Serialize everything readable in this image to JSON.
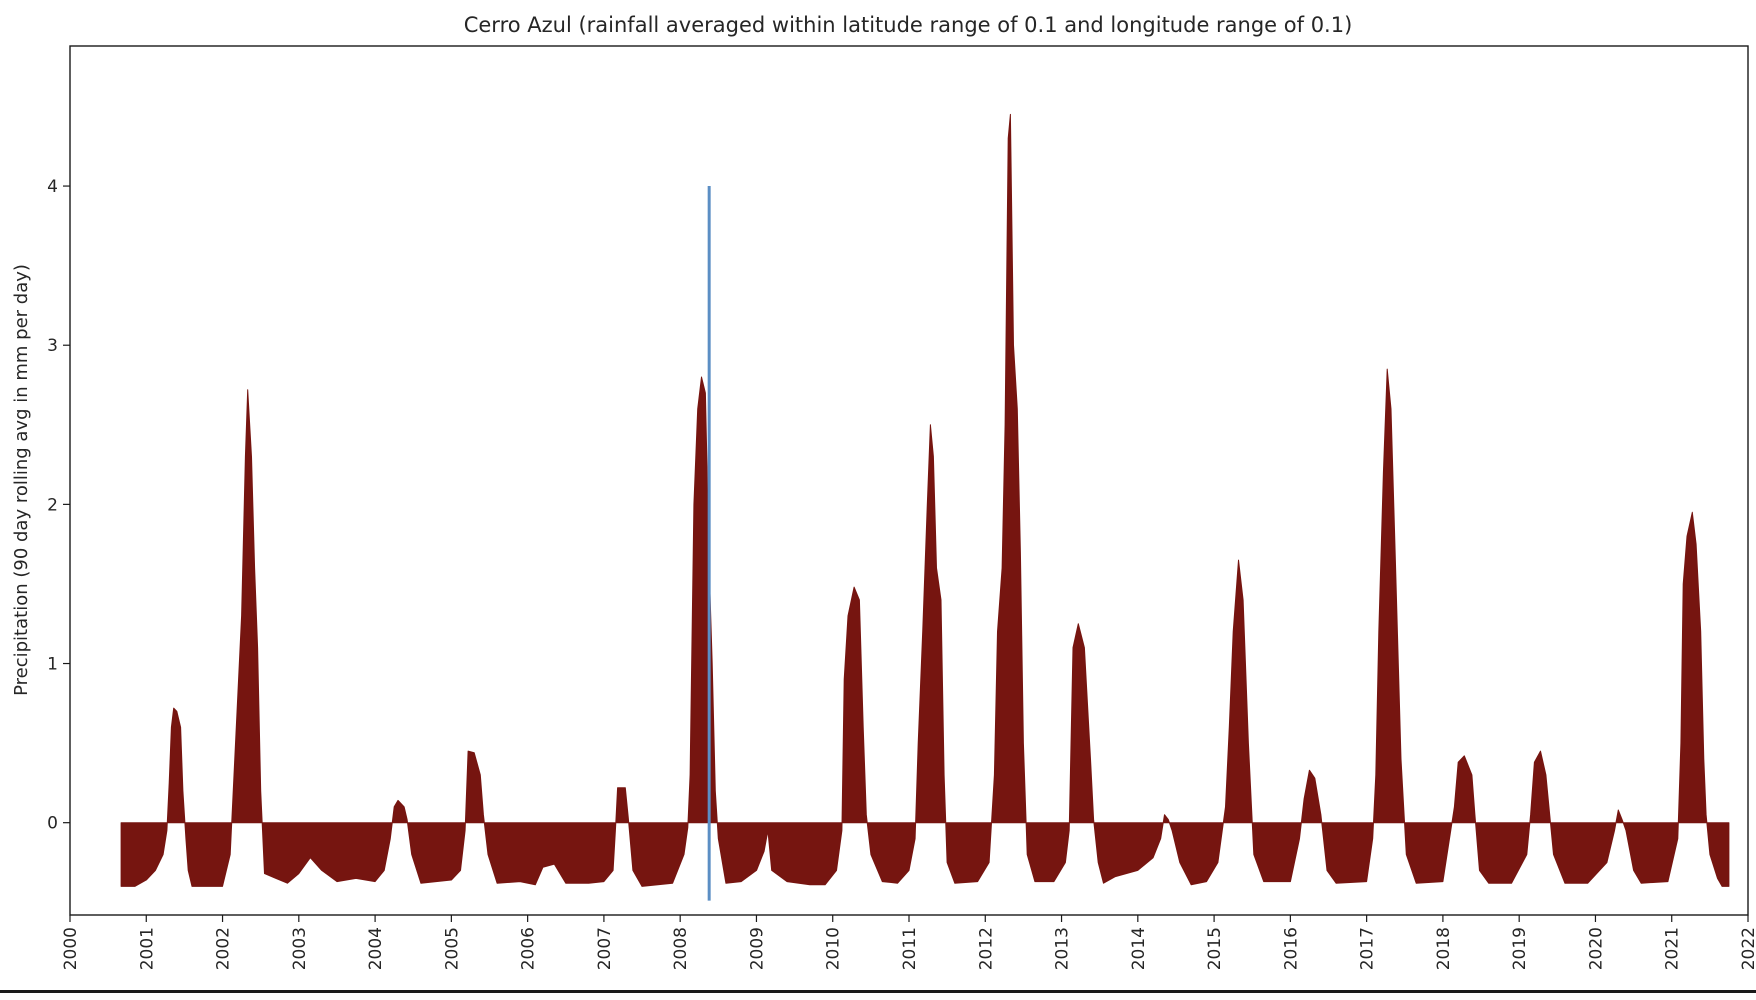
{
  "chart_data": {
    "type": "area",
    "title": "Cerro Azul (rainfall averaged within latitude range of 0.1 and longitude range of 0.1)",
    "xlabel": "",
    "ylabel": "Precipitation (90 day rolling avg in mm per day)",
    "xlim": [
      2000.0,
      2022.0
    ],
    "ylim": [
      -0.58,
      4.88
    ],
    "x_ticks": [
      "2000",
      "2001",
      "2002",
      "2003",
      "2004",
      "2005",
      "2006",
      "2007",
      "2008",
      "2009",
      "2010",
      "2011",
      "2012",
      "2013",
      "2014",
      "2015",
      "2016",
      "2017",
      "2018",
      "2019",
      "2020",
      "2021",
      "2022"
    ],
    "y_ticks": [
      0,
      1,
      2,
      3,
      4
    ],
    "fill_color": "#761510",
    "grid": false,
    "baseline": 0,
    "series": [
      {
        "points": [
          [
            2000.67,
            -0.4
          ],
          [
            2000.85,
            -0.4
          ],
          [
            2001.0,
            -0.36
          ],
          [
            2001.12,
            -0.3
          ],
          [
            2001.22,
            -0.2
          ],
          [
            2001.27,
            -0.05
          ],
          [
            2001.3,
            0.25
          ],
          [
            2001.33,
            0.6
          ],
          [
            2001.36,
            0.72
          ],
          [
            2001.4,
            0.7
          ],
          [
            2001.45,
            0.6
          ],
          [
            2001.48,
            0.2
          ],
          [
            2001.52,
            -0.1
          ],
          [
            2001.55,
            -0.3
          ],
          [
            2001.6,
            -0.4
          ],
          [
            2002.0,
            -0.4
          ],
          [
            2002.1,
            -0.2
          ],
          [
            2002.15,
            0.3
          ],
          [
            2002.2,
            0.8
          ],
          [
            2002.25,
            1.3
          ],
          [
            2002.3,
            2.3
          ],
          [
            2002.33,
            2.72
          ],
          [
            2002.38,
            2.3
          ],
          [
            2002.42,
            1.6
          ],
          [
            2002.46,
            1.1
          ],
          [
            2002.5,
            0.2
          ],
          [
            2002.55,
            -0.32
          ],
          [
            2002.7,
            -0.35
          ],
          [
            2002.85,
            -0.38
          ],
          [
            2003.0,
            -0.32
          ],
          [
            2003.15,
            -0.22
          ],
          [
            2003.3,
            -0.3
          ],
          [
            2003.5,
            -0.37
          ],
          [
            2003.75,
            -0.35
          ],
          [
            2004.0,
            -0.37
          ],
          [
            2004.12,
            -0.3
          ],
          [
            2004.2,
            -0.1
          ],
          [
            2004.25,
            0.1
          ],
          [
            2004.3,
            0.14
          ],
          [
            2004.38,
            0.1
          ],
          [
            2004.42,
            0.02
          ],
          [
            2004.48,
            -0.2
          ],
          [
            2004.6,
            -0.38
          ],
          [
            2004.8,
            -0.37
          ],
          [
            2005.0,
            -0.36
          ],
          [
            2005.12,
            -0.3
          ],
          [
            2005.18,
            -0.05
          ],
          [
            2005.22,
            0.45
          ],
          [
            2005.3,
            0.44
          ],
          [
            2005.38,
            0.3
          ],
          [
            2005.42,
            0.05
          ],
          [
            2005.48,
            -0.2
          ],
          [
            2005.6,
            -0.38
          ],
          [
            2005.9,
            -0.37
          ],
          [
            2006.1,
            -0.39
          ],
          [
            2006.2,
            -0.28
          ],
          [
            2006.35,
            -0.26
          ],
          [
            2006.5,
            -0.38
          ],
          [
            2006.8,
            -0.38
          ],
          [
            2007.0,
            -0.37
          ],
          [
            2007.12,
            -0.3
          ],
          [
            2007.15,
            -0.05
          ],
          [
            2007.18,
            0.22
          ],
          [
            2007.28,
            0.22
          ],
          [
            2007.32,
            0.03
          ],
          [
            2007.38,
            -0.3
          ],
          [
            2007.5,
            -0.4
          ],
          [
            2007.9,
            -0.38
          ],
          [
            2008.05,
            -0.2
          ],
          [
            2008.1,
            -0.03
          ],
          [
            2008.13,
            0.3
          ],
          [
            2008.18,
            2.0
          ],
          [
            2008.23,
            2.6
          ],
          [
            2008.28,
            2.8
          ],
          [
            2008.33,
            2.7
          ],
          [
            2008.38,
            1.6
          ],
          [
            2008.42,
            1.0
          ],
          [
            2008.46,
            0.2
          ],
          [
            2008.5,
            -0.1
          ],
          [
            2008.6,
            -0.38
          ],
          [
            2008.8,
            -0.37
          ],
          [
            2009.0,
            -0.3
          ],
          [
            2009.1,
            -0.18
          ],
          [
            2009.15,
            -0.05
          ],
          [
            2009.2,
            -0.3
          ],
          [
            2009.4,
            -0.37
          ],
          [
            2009.7,
            -0.39
          ],
          [
            2009.9,
            -0.39
          ],
          [
            2010.05,
            -0.3
          ],
          [
            2010.12,
            -0.05
          ],
          [
            2010.15,
            0.9
          ],
          [
            2010.2,
            1.3
          ],
          [
            2010.28,
            1.48
          ],
          [
            2010.35,
            1.4
          ],
          [
            2010.4,
            0.6
          ],
          [
            2010.44,
            0.05
          ],
          [
            2010.5,
            -0.2
          ],
          [
            2010.65,
            -0.37
          ],
          [
            2010.85,
            -0.38
          ],
          [
            2011.0,
            -0.3
          ],
          [
            2011.08,
            -0.1
          ],
          [
            2011.12,
            0.5
          ],
          [
            2011.18,
            1.2
          ],
          [
            2011.24,
            2.0
          ],
          [
            2011.28,
            2.5
          ],
          [
            2011.32,
            2.3
          ],
          [
            2011.36,
            1.6
          ],
          [
            2011.42,
            1.4
          ],
          [
            2011.46,
            0.3
          ],
          [
            2011.5,
            -0.25
          ],
          [
            2011.6,
            -0.38
          ],
          [
            2011.9,
            -0.37
          ],
          [
            2012.05,
            -0.25
          ],
          [
            2012.12,
            0.3
          ],
          [
            2012.16,
            1.2
          ],
          [
            2012.22,
            1.6
          ],
          [
            2012.26,
            2.5
          ],
          [
            2012.3,
            4.3
          ],
          [
            2012.33,
            4.45
          ],
          [
            2012.37,
            3.0
          ],
          [
            2012.42,
            2.6
          ],
          [
            2012.46,
            1.7
          ],
          [
            2012.5,
            0.5
          ],
          [
            2012.55,
            -0.2
          ],
          [
            2012.65,
            -0.37
          ],
          [
            2012.9,
            -0.37
          ],
          [
            2013.05,
            -0.25
          ],
          [
            2013.1,
            -0.05
          ],
          [
            2013.12,
            0.4
          ],
          [
            2013.15,
            1.1
          ],
          [
            2013.22,
            1.25
          ],
          [
            2013.3,
            1.1
          ],
          [
            2013.38,
            0.4
          ],
          [
            2013.42,
            0.02
          ],
          [
            2013.48,
            -0.25
          ],
          [
            2013.55,
            -0.38
          ],
          [
            2013.7,
            -0.34
          ],
          [
            2014.0,
            -0.3
          ],
          [
            2014.2,
            -0.22
          ],
          [
            2014.3,
            -0.1
          ],
          [
            2014.35,
            0.05
          ],
          [
            2014.4,
            0.02
          ],
          [
            2014.45,
            -0.05
          ],
          [
            2014.55,
            -0.25
          ],
          [
            2014.7,
            -0.39
          ],
          [
            2014.9,
            -0.37
          ],
          [
            2015.05,
            -0.25
          ],
          [
            2015.15,
            0.1
          ],
          [
            2015.2,
            0.6
          ],
          [
            2015.25,
            1.2
          ],
          [
            2015.32,
            1.65
          ],
          [
            2015.38,
            1.4
          ],
          [
            2015.45,
            0.5
          ],
          [
            2015.52,
            -0.2
          ],
          [
            2015.65,
            -0.37
          ],
          [
            2016.0,
            -0.37
          ],
          [
            2016.12,
            -0.1
          ],
          [
            2016.18,
            0.15
          ],
          [
            2016.25,
            0.33
          ],
          [
            2016.32,
            0.28
          ],
          [
            2016.4,
            0.05
          ],
          [
            2016.48,
            -0.3
          ],
          [
            2016.6,
            -0.38
          ],
          [
            2017.0,
            -0.37
          ],
          [
            2017.08,
            -0.1
          ],
          [
            2017.12,
            0.3
          ],
          [
            2017.16,
            1.2
          ],
          [
            2017.22,
            2.2
          ],
          [
            2017.27,
            2.85
          ],
          [
            2017.32,
            2.6
          ],
          [
            2017.38,
            1.6
          ],
          [
            2017.45,
            0.4
          ],
          [
            2017.52,
            -0.2
          ],
          [
            2017.65,
            -0.38
          ],
          [
            2018.0,
            -0.37
          ],
          [
            2018.15,
            0.1
          ],
          [
            2018.2,
            0.38
          ],
          [
            2018.28,
            0.42
          ],
          [
            2018.38,
            0.3
          ],
          [
            2018.42,
            0.05
          ],
          [
            2018.48,
            -0.3
          ],
          [
            2018.6,
            -0.38
          ],
          [
            2018.9,
            -0.38
          ],
          [
            2019.1,
            -0.2
          ],
          [
            2019.15,
            0.05
          ],
          [
            2019.2,
            0.38
          ],
          [
            2019.28,
            0.45
          ],
          [
            2019.35,
            0.3
          ],
          [
            2019.4,
            0.05
          ],
          [
            2019.45,
            -0.2
          ],
          [
            2019.6,
            -0.38
          ],
          [
            2019.9,
            -0.38
          ],
          [
            2020.15,
            -0.25
          ],
          [
            2020.25,
            -0.05
          ],
          [
            2020.3,
            0.08
          ],
          [
            2020.35,
            0.02
          ],
          [
            2020.4,
            -0.05
          ],
          [
            2020.5,
            -0.3
          ],
          [
            2020.6,
            -0.38
          ],
          [
            2020.95,
            -0.37
          ],
          [
            2021.08,
            -0.1
          ],
          [
            2021.12,
            0.5
          ],
          [
            2021.15,
            1.5
          ],
          [
            2021.2,
            1.8
          ],
          [
            2021.27,
            1.95
          ],
          [
            2021.32,
            1.75
          ],
          [
            2021.38,
            1.2
          ],
          [
            2021.42,
            0.4
          ],
          [
            2021.45,
            0.05
          ],
          [
            2021.5,
            -0.2
          ],
          [
            2021.6,
            -0.35
          ],
          [
            2021.66,
            -0.4
          ],
          [
            2021.75,
            -0.4
          ]
        ]
      }
    ],
    "annotations": [
      {
        "type": "vertical_line",
        "x": 2008.38,
        "y_from": -0.49,
        "y_to": 4.0,
        "color": "#5b8ec4"
      }
    ]
  }
}
